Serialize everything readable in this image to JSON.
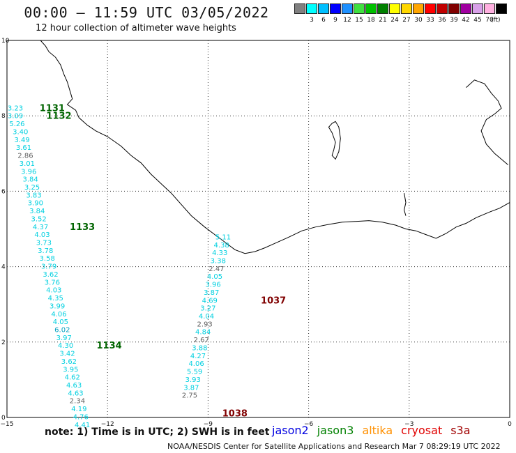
{
  "header": {
    "title": "00:00 – 11:59 UTC 03/05/2022",
    "subtitle": "12 hour collection of altimeter wave heights"
  },
  "legend": {
    "units": "(ft)",
    "swatches": [
      {
        "color": "#808080",
        "label": ""
      },
      {
        "color": "#00ffff",
        "label": "3"
      },
      {
        "color": "#00bfff",
        "label": "6"
      },
      {
        "color": "#0000ff",
        "label": "9"
      },
      {
        "color": "#1e90ff",
        "label": "12"
      },
      {
        "color": "#40e040",
        "label": "15"
      },
      {
        "color": "#00c000",
        "label": "18"
      },
      {
        "color": "#008000",
        "label": "21"
      },
      {
        "color": "#ffff00",
        "label": "24"
      },
      {
        "color": "#ffd700",
        "label": "27"
      },
      {
        "color": "#ffa500",
        "label": "30"
      },
      {
        "color": "#ff0000",
        "label": "33"
      },
      {
        "color": "#c00000",
        "label": "36"
      },
      {
        "color": "#800000",
        "label": "39"
      },
      {
        "color": "#a000a0",
        "label": "42"
      },
      {
        "color": "#d8a0e8",
        "label": "45"
      },
      {
        "color": "#ffb0e0",
        "label": "70"
      },
      {
        "color": "#000000",
        "label": ""
      }
    ]
  },
  "axes": {
    "x_ticks": [
      "−15",
      "−12",
      "−9",
      "−6",
      "−3",
      "0"
    ],
    "y_ticks": [
      "0",
      "2",
      "4",
      "6",
      "8",
      "10"
    ],
    "xlim": [
      -15,
      0
    ],
    "ylim": [
      0,
      10
    ]
  },
  "tracks": [
    {
      "orbit": "1131",
      "orbit_color": "#006400",
      "points": [
        {
          "text": "3.23",
          "lon": -14.75,
          "lat": 8.2,
          "color": "#00d0e0"
        }
      ]
    },
    {
      "orbit": "1132",
      "orbit_color": "#006400",
      "points": [
        {
          "text": "3.09",
          "lon": -14.75,
          "lat": 7.99,
          "color": "#00d0e0"
        },
        {
          "text": "5.26",
          "lon": -14.7,
          "lat": 7.78,
          "color": "#00d0e0"
        },
        {
          "text": "3.40",
          "lon": -14.6,
          "lat": 7.57,
          "color": "#00d0e0"
        },
        {
          "text": "3.49",
          "lon": -14.55,
          "lat": 7.36,
          "color": "#00d0e0"
        },
        {
          "text": "3.61",
          "lon": -14.5,
          "lat": 7.15,
          "color": "#00d0e0"
        },
        {
          "text": "2.86",
          "lon": -14.45,
          "lat": 6.94,
          "color": "#606060"
        },
        {
          "text": "3.01",
          "lon": -14.4,
          "lat": 6.73,
          "color": "#00d0e0"
        },
        {
          "text": "3.96",
          "lon": -14.35,
          "lat": 6.52,
          "color": "#00d0e0"
        },
        {
          "text": "3.84",
          "lon": -14.3,
          "lat": 6.31,
          "color": "#00d0e0"
        },
        {
          "text": "3.25",
          "lon": -14.25,
          "lat": 6.1,
          "color": "#00d0e0"
        },
        {
          "text": "3.83",
          "lon": -14.2,
          "lat": 5.89,
          "color": "#00d0e0"
        },
        {
          "text": "3.90",
          "lon": -14.15,
          "lat": 5.68,
          "color": "#00d0e0"
        },
        {
          "text": "3.84",
          "lon": -14.1,
          "lat": 5.47,
          "color": "#00d0e0"
        },
        {
          "text": "3.52",
          "lon": -14.05,
          "lat": 5.26,
          "color": "#00d0e0"
        }
      ]
    },
    {
      "orbit": "1133",
      "orbit_color": "#006400",
      "points": [
        {
          "text": "4.37",
          "lon": -14.0,
          "lat": 5.05,
          "color": "#00d0e0"
        },
        {
          "text": "4.03",
          "lon": -13.95,
          "lat": 4.84,
          "color": "#00d0e0"
        },
        {
          "text": "3.73",
          "lon": -13.9,
          "lat": 4.63,
          "color": "#00d0e0"
        },
        {
          "text": "3.78",
          "lon": -13.85,
          "lat": 4.42,
          "color": "#00d0e0"
        },
        {
          "text": "3.58",
          "lon": -13.8,
          "lat": 4.21,
          "color": "#00d0e0"
        },
        {
          "text": "3.79",
          "lon": -13.75,
          "lat": 4.0,
          "color": "#00d0e0"
        },
        {
          "text": "3.62",
          "lon": -13.7,
          "lat": 3.79,
          "color": "#00d0e0"
        },
        {
          "text": "3.76",
          "lon": -13.65,
          "lat": 3.58,
          "color": "#00d0e0"
        },
        {
          "text": "4.03",
          "lon": -13.6,
          "lat": 3.37,
          "color": "#00d0e0"
        },
        {
          "text": "4.35",
          "lon": -13.55,
          "lat": 3.16,
          "color": "#00d0e0"
        },
        {
          "text": "3.99",
          "lon": -13.5,
          "lat": 2.95,
          "color": "#00d0e0"
        },
        {
          "text": "4.06",
          "lon": -13.45,
          "lat": 2.74,
          "color": "#00d0e0"
        },
        {
          "text": "4.05",
          "lon": -13.4,
          "lat": 2.53,
          "color": "#00d0e0"
        },
        {
          "text": "6.02",
          "lon": -13.35,
          "lat": 2.32,
          "color": "#00a0c0"
        },
        {
          "text": "3.97",
          "lon": -13.3,
          "lat": 2.11,
          "color": "#00d0e0"
        }
      ]
    },
    {
      "orbit": "1134",
      "orbit_color": "#006400",
      "points": [
        {
          "text": "4.30",
          "lon": -13.25,
          "lat": 1.9,
          "color": "#00d0e0"
        },
        {
          "text": "3.42",
          "lon": -13.2,
          "lat": 1.69,
          "color": "#00d0e0"
        },
        {
          "text": "3.62",
          "lon": -13.15,
          "lat": 1.48,
          "color": "#00d0e0"
        },
        {
          "text": "3.95",
          "lon": -13.1,
          "lat": 1.27,
          "color": "#00d0e0"
        },
        {
          "text": "4.62",
          "lon": -13.05,
          "lat": 1.06,
          "color": "#00d0e0"
        },
        {
          "text": "4.63",
          "lon": -13.0,
          "lat": 0.85,
          "color": "#00d0e0"
        },
        {
          "text": "4.63",
          "lon": -12.95,
          "lat": 0.64,
          "color": "#00d0e0"
        },
        {
          "text": "2.34",
          "lon": -12.9,
          "lat": 0.43,
          "color": "#606060"
        },
        {
          "text": "4.19",
          "lon": -12.85,
          "lat": 0.22,
          "color": "#00d0e0"
        },
        {
          "text": "4.76",
          "lon": -12.8,
          "lat": 0.01,
          "color": "#00d0e0"
        },
        {
          "text": "4.41",
          "lon": -12.75,
          "lat": -0.2,
          "color": "#00d0e0"
        }
      ]
    },
    {
      "orbit": "1037",
      "orbit_color": "#800000",
      "points": [
        {
          "text": "5.11",
          "lon": -8.55,
          "lat": 4.78,
          "color": "#00d0e0"
        },
        {
          "text": "4.38",
          "lon": -8.6,
          "lat": 4.57,
          "color": "#00d0e0"
        },
        {
          "text": "4.33",
          "lon": -8.65,
          "lat": 4.36,
          "color": "#00d0e0"
        },
        {
          "text": "3.38",
          "lon": -8.7,
          "lat": 4.15,
          "color": "#00d0e0"
        },
        {
          "text": "2.47",
          "lon": -8.75,
          "lat": 3.94,
          "color": "#606060"
        },
        {
          "text": "4.05",
          "lon": -8.8,
          "lat": 3.73,
          "color": "#00d0e0"
        },
        {
          "text": "3.96",
          "lon": -8.85,
          "lat": 3.52,
          "color": "#00d0e0"
        },
        {
          "text": "3.87",
          "lon": -8.9,
          "lat": 3.31,
          "color": "#00d0e0"
        },
        {
          "text": "4.69",
          "lon": -8.95,
          "lat": 3.1,
          "color": "#00d0e0"
        },
        {
          "text": "3.27",
          "lon": -9.0,
          "lat": 2.89,
          "color": "#00d0e0"
        },
        {
          "text": "4.04",
          "lon": -9.05,
          "lat": 2.68,
          "color": "#00d0e0"
        },
        {
          "text": "2.93",
          "lon": -9.1,
          "lat": 2.47,
          "color": "#606060"
        },
        {
          "text": "4.84",
          "lon": -9.15,
          "lat": 2.26,
          "color": "#00d0e0"
        }
      ]
    },
    {
      "orbit": "1038",
      "orbit_color": "#800000",
      "points": [
        {
          "text": "2.67",
          "lon": -9.2,
          "lat": 2.05,
          "color": "#606060"
        },
        {
          "text": "3.88",
          "lon": -9.25,
          "lat": 1.84,
          "color": "#00d0e0"
        },
        {
          "text": "4.27",
          "lon": -9.3,
          "lat": 1.63,
          "color": "#00d0e0"
        },
        {
          "text": "4.06",
          "lon": -9.35,
          "lat": 1.42,
          "color": "#00d0e0"
        },
        {
          "text": "5.59",
          "lon": -9.4,
          "lat": 1.21,
          "color": "#00d0e0"
        },
        {
          "text": "3.93",
          "lon": -9.45,
          "lat": 1.0,
          "color": "#00d0e0"
        },
        {
          "text": "3.87",
          "lon": -9.5,
          "lat": 0.79,
          "color": "#00d0e0"
        },
        {
          "text": "2.75",
          "lon": -9.55,
          "lat": 0.58,
          "color": "#606060"
        }
      ]
    }
  ],
  "footer": {
    "note": "note:  1) Time is in UTC;  2) SWH is in feet",
    "satellites": [
      {
        "name": "jason2",
        "color": "#0000e0"
      },
      {
        "name": "jason3",
        "color": "#008000"
      },
      {
        "name": "altika",
        "color": "#ff9000"
      },
      {
        "name": "cryosat",
        "color": "#e00000"
      },
      {
        "name": "s3a",
        "color": "#a00000"
      }
    ],
    "credit": "NOAA/NESDIS Center for Satellite Applications and Research    Mar  7 08:29:19 UTC 2022"
  }
}
